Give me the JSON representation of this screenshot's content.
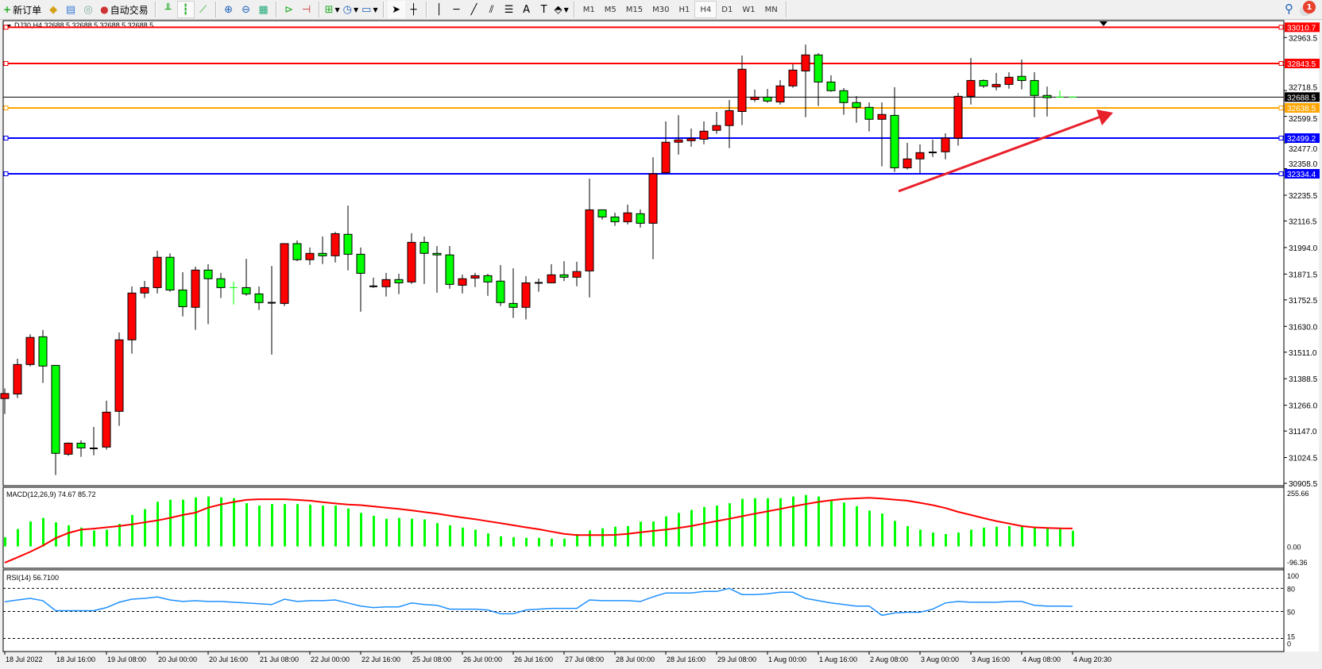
{
  "toolbar": {
    "new_order": "新订单",
    "auto_trading": "自动交易",
    "timeframes": [
      "M1",
      "M5",
      "M15",
      "M30",
      "H1",
      "H4",
      "D1",
      "W1",
      "MN"
    ],
    "active_timeframe": "H4",
    "notification_count": "1",
    "icons": [
      "new-order-icon",
      "gold-icon",
      "data-window-icon",
      "signals-icon",
      "auto-trading-icon",
      "bar-chart-icon",
      "candlestick-icon",
      "line-chart-icon",
      "zoom-in-icon",
      "zoom-out-icon",
      "tile-windows-icon",
      "auto-scroll-icon",
      "chart-shift-icon",
      "indicators-icon",
      "periods-icon",
      "templates-icon",
      "cursor-icon",
      "crosshair-icon",
      "vertical-line-icon",
      "horizontal-line-icon",
      "trendline-icon",
      "fibonacci-icon",
      "fibo-channel-icon",
      "text-icon",
      "text-label-icon",
      "arrows-icon",
      "search-icon",
      "chat-icon"
    ]
  },
  "chart": {
    "header": "DJ30,H4  32688.5 32688.5 32688.5 32688.5",
    "bull_color": "#ff0000",
    "bear_color": "#00ff00",
    "price_axis_ticks": [
      "32963.5",
      "32718.5",
      "32599.5",
      "32477.0",
      "32358.0",
      "32235.5",
      "32116.5",
      "31994.0",
      "31871.5",
      "31752.5",
      "31630.0",
      "31511.0",
      "31388.5",
      "31266.0",
      "31147.0",
      "31024.5",
      "30905.5"
    ],
    "levels": [
      {
        "price": "33010.7",
        "color": "#ff0000"
      },
      {
        "price": "32843.5",
        "color": "#ff0000"
      },
      {
        "price": "32638.5",
        "color": "#ffa500"
      },
      {
        "price": "32499.2",
        "color": "#0000ff"
      },
      {
        "price": "32334.4",
        "color": "#0000ff"
      }
    ],
    "current_price": "32688.5",
    "trend_arrow_color": "#e8202a",
    "time_labels": [
      "18 Jul 2022",
      "18 Jul 16:00",
      "19 Jul 08:00",
      "20 Jul 00:00",
      "20 Jul 16:00",
      "21 Jul 08:00",
      "22 Jul 00:00",
      "22 Jul 16:00",
      "25 Jul 08:00",
      "26 Jul 00:00",
      "26 Jul 16:00",
      "27 Jul 08:00",
      "28 Jul 00:00",
      "28 Jul 16:00",
      "29 Jul 08:00",
      "1 Aug 00:00",
      "1 Aug 16:00",
      "2 Aug 08:00",
      "3 Aug 00:00",
      "3 Aug 16:00",
      "4 Aug 08:00",
      "4 Aug 20:30"
    ],
    "candles_ohlc": [
      [
        31297,
        31344,
        31226,
        31320
      ],
      [
        31318,
        31481,
        31299,
        31454
      ],
      [
        31454,
        31594,
        31445,
        31579
      ],
      [
        31582,
        31613,
        31369,
        31447
      ],
      [
        31450,
        31452,
        30944,
        31044
      ],
      [
        31040,
        31095,
        31032,
        31091
      ],
      [
        31091,
        31104,
        31028,
        31069
      ],
      [
        31067,
        31166,
        31035,
        31067
      ],
      [
        31073,
        31287,
        31061,
        31234
      ],
      [
        31238,
        31602,
        31171,
        31568
      ],
      [
        31568,
        31814,
        31504,
        31784
      ],
      [
        31784,
        31840,
        31761,
        31809
      ],
      [
        31809,
        31979,
        31782,
        31949
      ],
      [
        31949,
        31967,
        31790,
        31798
      ],
      [
        31798,
        31880,
        31676,
        31721
      ],
      [
        31718,
        31906,
        31614,
        31890
      ],
      [
        31890,
        31917,
        31640,
        31850
      ],
      [
        31850,
        31877,
        31761,
        31809
      ],
      [
        31809,
        31836,
        31731,
        31808.5
      ],
      [
        31809,
        31942,
        31771,
        31780
      ],
      [
        31780,
        31814,
        31706,
        31740
      ],
      [
        31739,
        31909,
        31500,
        31739
      ],
      [
        31736,
        32012,
        31724,
        32012
      ],
      [
        32012,
        32027,
        31931,
        31938
      ],
      [
        31938,
        31994,
        31914,
        31967
      ],
      [
        31967,
        32045,
        31918,
        31956
      ],
      [
        31956,
        32066,
        31925,
        32058
      ],
      [
        32055,
        32188,
        31889,
        31963
      ],
      [
        31963,
        31994,
        31698,
        31875
      ],
      [
        31815,
        31855,
        31808,
        31815
      ],
      [
        31813,
        31877,
        31768,
        31846
      ],
      [
        31846,
        31873,
        31779,
        31831
      ],
      [
        31835,
        32060,
        31826,
        32018
      ],
      [
        32018,
        32045,
        31826,
        31967
      ],
      [
        31967,
        32001,
        31786,
        31960
      ],
      [
        31960,
        32001,
        31804,
        31824
      ],
      [
        31820,
        31869,
        31782,
        31850
      ],
      [
        31853,
        31877,
        31812,
        31864
      ],
      [
        31864,
        31873,
        31771,
        31835
      ],
      [
        31839,
        31913,
        31724,
        31740
      ],
      [
        31736,
        31898,
        31669,
        31718
      ],
      [
        31718,
        31862,
        31662,
        31831
      ],
      [
        31831,
        31851,
        31790,
        31831
      ],
      [
        31831,
        31917,
        31831,
        31868
      ],
      [
        31868,
        31931,
        31839,
        31857
      ],
      [
        31857,
        31928,
        31815,
        31883
      ],
      [
        31886,
        32312,
        31764,
        32168
      ],
      [
        32168,
        32168,
        32123,
        32135
      ],
      [
        32135,
        32155,
        32094,
        32113
      ],
      [
        32113,
        32192,
        32101,
        32154
      ],
      [
        32150,
        32170,
        32086,
        32106
      ],
      [
        32106,
        32411,
        31940,
        32334
      ],
      [
        32339,
        32576,
        32339,
        32480
      ],
      [
        32480,
        32605,
        32423,
        32491
      ],
      [
        32487,
        32543,
        32460,
        32497
      ],
      [
        32494,
        32576,
        32471,
        32531
      ],
      [
        32535,
        32620,
        32519,
        32557
      ],
      [
        32557,
        32675,
        32453,
        32626
      ],
      [
        32622,
        32880,
        32559,
        32817
      ],
      [
        32677,
        32723,
        32666,
        32688
      ],
      [
        32688,
        32726,
        32662,
        32670
      ],
      [
        32666,
        32767,
        32654,
        32740
      ],
      [
        32740,
        32840,
        32732,
        32813
      ],
      [
        32809,
        32931,
        32596,
        32883
      ],
      [
        32883,
        32891,
        32647,
        32758
      ],
      [
        32758,
        32789,
        32713,
        32718
      ],
      [
        32718,
        32730,
        32607,
        32663
      ],
      [
        32663,
        32693,
        32570,
        32641
      ],
      [
        32641,
        32664,
        32530,
        32586
      ],
      [
        32586,
        32664,
        32369,
        32608
      ],
      [
        32604,
        32734,
        32343,
        32362
      ],
      [
        32362,
        32477,
        32354,
        32403
      ],
      [
        32403,
        32470,
        32337,
        32432
      ],
      [
        32433,
        32492,
        32412,
        32433
      ],
      [
        32436,
        32521,
        32401,
        32499
      ],
      [
        32499,
        32708,
        32464,
        32692
      ],
      [
        32692,
        32869,
        32654,
        32765
      ],
      [
        32765,
        32770,
        32731,
        32740
      ],
      [
        32736,
        32800,
        32720,
        32747
      ],
      [
        32747,
        32803,
        32727,
        32780
      ],
      [
        32784,
        32862,
        32724,
        32765
      ],
      [
        32765,
        32803,
        32596,
        32696
      ],
      [
        32696,
        32737,
        32599,
        32686
      ],
      [
        32688.5,
        32719,
        32688.5,
        32688
      ],
      [
        32688.5,
        32688.5,
        32688.5,
        32688.5
      ]
    ]
  },
  "macd": {
    "label": "MACD(12,26,9) 74.67 85.72",
    "axis_labels": [
      "255.66",
      "0.00",
      "-96.36"
    ],
    "range": [
      -96.36,
      255.66
    ],
    "histogram_color": "#00ff00",
    "signal_color": "#ff0000",
    "main": [
      44,
      83,
      119,
      136,
      115,
      101,
      90,
      76,
      80,
      108,
      150,
      178,
      213,
      223,
      223,
      234,
      238,
      234,
      230,
      206,
      195,
      202,
      202,
      202,
      199,
      195,
      195,
      181,
      160,
      146,
      132,
      136,
      132,
      129,
      111,
      101,
      90,
      80,
      62,
      48,
      44,
      41,
      41,
      37,
      37,
      59,
      76,
      87,
      94,
      97,
      118,
      119,
      143,
      160,
      174,
      188,
      195,
      206,
      227,
      230,
      230,
      230,
      238,
      245,
      238,
      223,
      209,
      192,
      171,
      157,
      122,
      97,
      80,
      66,
      59,
      66,
      80,
      90,
      94,
      97,
      97,
      94,
      87,
      90,
      74.67
    ],
    "signal": [
      -78,
      -52,
      -26,
      4,
      39,
      64,
      80,
      85,
      91,
      97,
      105,
      115,
      124,
      136,
      150,
      161,
      185,
      200,
      212,
      222,
      225,
      225,
      225,
      222,
      218,
      211,
      205,
      200,
      197,
      191,
      185,
      179,
      172,
      164,
      156,
      147,
      138,
      130,
      120,
      111,
      101,
      91,
      82,
      71,
      60,
      54,
      54,
      54,
      55,
      60,
      67,
      74,
      80,
      88,
      97,
      109,
      121,
      132,
      144,
      156,
      167,
      179,
      191,
      202,
      212,
      220,
      226,
      229,
      232,
      228,
      223,
      218,
      208,
      197,
      183,
      165,
      150,
      135,
      121,
      109,
      97,
      91,
      88,
      86,
      85.72
    ]
  },
  "rsi": {
    "label": "RSI(14) 56.7100",
    "axis_labels": [
      "100",
      "80",
      "50",
      "15",
      "0"
    ],
    "levels": [
      80,
      50,
      15
    ],
    "line_color": "#1e90ff",
    "values": [
      62.6,
      65,
      67,
      64,
      51,
      51,
      51,
      51,
      55,
      62,
      66,
      67,
      69,
      65,
      63,
      64,
      63,
      63,
      62,
      61,
      60,
      59,
      66,
      63,
      64,
      64,
      65,
      61,
      57,
      55,
      56,
      56,
      61,
      59,
      58,
      53,
      53,
      53,
      52,
      47,
      47,
      52,
      53,
      54,
      54,
      54,
      65,
      64,
      64,
      64,
      63,
      69,
      74,
      74,
      74,
      76,
      76,
      80,
      72,
      72,
      73,
      75,
      75,
      67,
      64,
      61,
      59,
      57,
      57,
      45,
      48,
      49,
      49,
      53,
      61,
      63,
      62,
      62,
      62,
      63,
      63,
      58,
      57,
      57,
      56.71
    ]
  }
}
